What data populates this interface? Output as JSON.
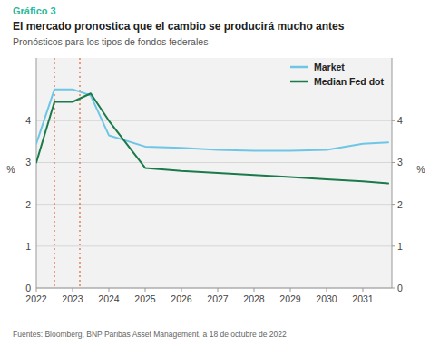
{
  "chart_data": {
    "type": "line",
    "graph_label": "Gráfico 3",
    "title": "El mercado pronostica que el cambio se producirá mucho antes",
    "subtitle": "Pronósticos para los tipos de fondos federales",
    "source": "Fuentes: Bloomberg, BNP Paribas Asset Management, a 18 de octubre de 2022",
    "ylabel": "%",
    "y2label": "%",
    "x": [
      2022,
      2022.5,
      2023,
      2023.5,
      2024,
      2025,
      2026,
      2027,
      2028,
      2029,
      2030,
      2031,
      2031.7
    ],
    "series": [
      {
        "name": "Market",
        "color": "#6ec6e6",
        "values": [
          3.45,
          4.75,
          4.75,
          4.6,
          3.65,
          3.38,
          3.35,
          3.3,
          3.28,
          3.28,
          3.3,
          3.45,
          3.48
        ]
      },
      {
        "name": "Median Fed dot",
        "color": "#1a7a4a",
        "values": [
          3.0,
          4.45,
          4.45,
          4.65,
          4.0,
          2.87,
          2.8,
          2.75,
          2.7,
          2.65,
          2.6,
          2.55,
          2.5
        ]
      }
    ],
    "vlines": [
      2022.5,
      2023.2
    ],
    "xlim": [
      2022,
      2031.8
    ],
    "xticks": [
      2022,
      2023,
      2024,
      2025,
      2026,
      2027,
      2028,
      2029,
      2030,
      2031
    ],
    "ylim": [
      0,
      5.5
    ],
    "yticks": [
      0,
      1,
      2,
      3,
      4
    ],
    "y2lim": [
      0,
      5.5
    ],
    "y2ticks": [
      0,
      1,
      2,
      3,
      4
    ],
    "grid": true,
    "legend": "top-right"
  }
}
